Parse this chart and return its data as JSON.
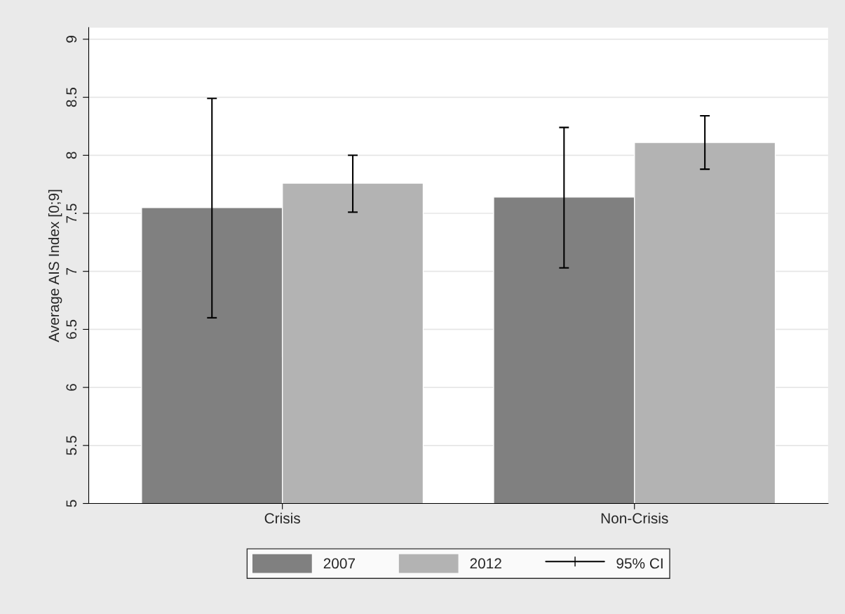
{
  "chart_data": {
    "type": "bar",
    "ylabel": "Average AIS Index [0;9]",
    "categories": [
      "Crisis",
      "Non-Crisis"
    ],
    "series": [
      {
        "name": "2007",
        "color": "#808080",
        "values": [
          7.55,
          7.64
        ],
        "errors": [
          [
            6.6,
            8.49
          ],
          [
            7.03,
            8.24
          ]
        ]
      },
      {
        "name": "2012",
        "color": "#b3b3b3",
        "values": [
          7.76,
          8.11
        ],
        "errors": [
          [
            7.51,
            8.0
          ],
          [
            7.88,
            8.34
          ]
        ]
      }
    ],
    "ylim": [
      5,
      9.1
    ],
    "yticks": [
      5,
      5.5,
      6,
      6.5,
      7,
      7.5,
      8,
      8.5,
      9
    ],
    "grid": "y",
    "legend": "bottom",
    "annotations": [
      "95% CI"
    ]
  }
}
